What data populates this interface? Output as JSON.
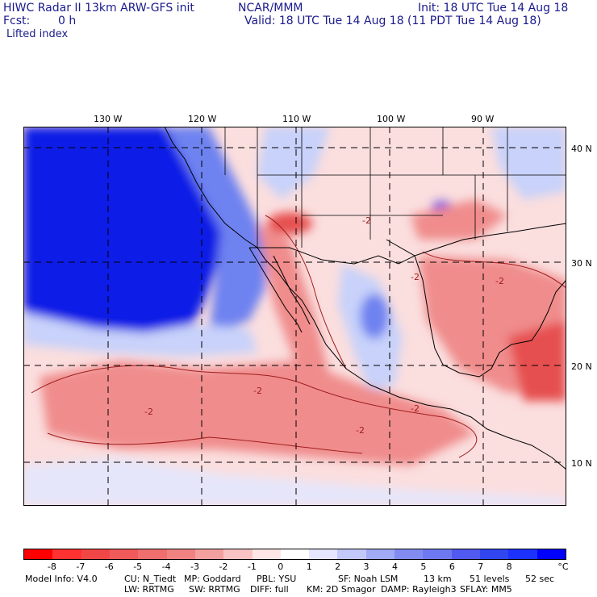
{
  "header": {
    "model": "HIWC Radar II 13km ARW-GFS init",
    "org": "NCAR/MMM",
    "init": "Init: 18 UTC Tue 14 Aug 18",
    "fcst_label": "Fcst:",
    "fcst_value": "0 h",
    "valid": "Valid: 18 UTC Tue 14 Aug 18 (11 PDT Tue 14 Aug 18)",
    "field": "Lifted index"
  },
  "map": {
    "lon_labels": [
      "130 W",
      "120 W",
      "110 W",
      "100 W",
      "90 W"
    ],
    "lat_labels": [
      "40 N",
      "30 N",
      "20 N",
      "10 N"
    ],
    "contour_label": "-2",
    "colors": {
      "ocean_stable": "#0a1ee6",
      "stable_mid": "#6e82f0",
      "stable_light": "#c8d2fa",
      "unstable_light": "#fac8c8",
      "unstable_mid": "#f08c8c",
      "unstable_strong": "#e65050",
      "coast": "#000000",
      "contour": "#a01e1e"
    }
  },
  "colorbar": {
    "unit": "°C",
    "labels": [
      "-8",
      "-7",
      "-6",
      "-5",
      "-4",
      "-3",
      "-2",
      "-1",
      "0",
      "1",
      "2",
      "3",
      "4",
      "5",
      "6",
      "7",
      "8"
    ],
    "colors": [
      "#ff0000",
      "#ff3232",
      "#f04646",
      "#f05a5a",
      "#f06e6e",
      "#f08282",
      "#f5a0a0",
      "#fac3c3",
      "#ffe6e6",
      "#ffffff",
      "#e6e6ff",
      "#c3c8fa",
      "#a0aaf5",
      "#828cf0",
      "#6e78f0",
      "#505af0",
      "#3246f0",
      "#1e32ff",
      "#0000ff"
    ]
  },
  "footer": {
    "line1": [
      "Model Info: V4.0",
      "CU: N_Tiedt",
      "MP: Goddard",
      "PBL: YSU",
      "SF: Noah LSM",
      "13 km",
      "51 levels",
      "52 sec"
    ],
    "line2": [
      "LW: RRTMG",
      "SW: RRTMG",
      "DIFF: full",
      "KM: 2D Smagor",
      "DAMP: Rayleigh3",
      "SFLAY: MM5"
    ]
  }
}
